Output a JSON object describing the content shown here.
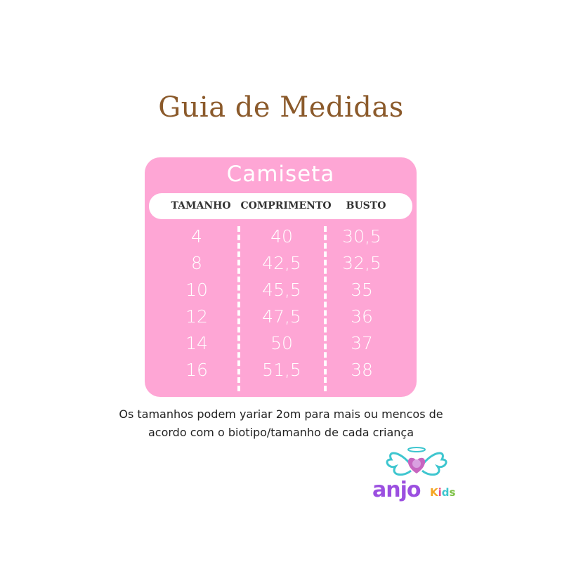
{
  "title": "Guia de Medidas",
  "table": {
    "title": "Camiseta",
    "headers": [
      "TAMANHO",
      "COMPRIMENTO",
      "BUSTO"
    ],
    "rows": [
      [
        "4",
        "40",
        "30,5"
      ],
      [
        "8",
        "42,5",
        "32,5"
      ],
      [
        "10",
        "45,5",
        "35"
      ],
      [
        "12",
        "47,5",
        "36"
      ],
      [
        "14",
        "50",
        "37"
      ],
      [
        "16",
        "51,5",
        "38"
      ]
    ]
  },
  "note": {
    "line1": "Os tamanhos podem yariar 2om para mais ou mencos de",
    "line2": "acordo com o biotipo/tamanho de cada criança"
  },
  "logo": {
    "text1": "anjo",
    "text2": "Kids"
  },
  "colors": {
    "pink": "#fea6d5",
    "title": "#8b5a2b",
    "logo_purple": "#9b4fe0",
    "logo_teal": "#3ec6cf"
  }
}
